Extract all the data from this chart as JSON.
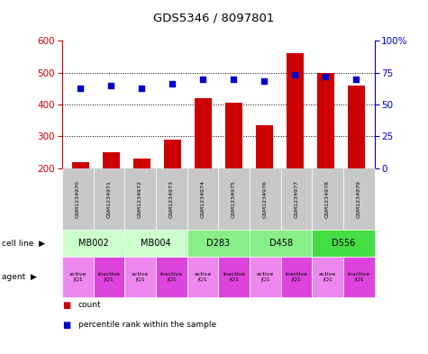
{
  "title": "GDS5346 / 8097801",
  "samples": [
    "GSM1234970",
    "GSM1234971",
    "GSM1234972",
    "GSM1234973",
    "GSM1234974",
    "GSM1234975",
    "GSM1234976",
    "GSM1234977",
    "GSM1234978",
    "GSM1234979"
  ],
  "counts": [
    220,
    250,
    230,
    290,
    420,
    405,
    335,
    560,
    500,
    460
  ],
  "percentiles": [
    63,
    65,
    63,
    66,
    70,
    70,
    68,
    73,
    72,
    70
  ],
  "cell_lines": [
    {
      "label": "MB002",
      "span": [
        0,
        2
      ],
      "color": "#ccffcc"
    },
    {
      "label": "MB004",
      "span": [
        2,
        4
      ],
      "color": "#ccffcc"
    },
    {
      "label": "D283",
      "span": [
        4,
        6
      ],
      "color": "#88ee88"
    },
    {
      "label": "D458",
      "span": [
        6,
        8
      ],
      "color": "#88ee88"
    },
    {
      "label": "D556",
      "span": [
        8,
        10
      ],
      "color": "#44dd44"
    }
  ],
  "agents_labels": [
    "active\nJQ1",
    "inactive\nJQ1",
    "active\nJQ1",
    "inactive\nJQ1",
    "active\nJQ1",
    "inactive\nJQ1",
    "active\nJQ1",
    "inactive\nJQ1",
    "active\nJQ1",
    "inactive\nJQ1"
  ],
  "agents_colors": [
    "#ee88ee",
    "#dd44dd",
    "#ee88ee",
    "#dd44dd",
    "#ee88ee",
    "#dd44dd",
    "#ee88ee",
    "#dd44dd",
    "#ee88ee",
    "#dd44dd"
  ],
  "ylim_left": [
    200,
    600
  ],
  "ylim_right": [
    0,
    100
  ],
  "yticks_left": [
    200,
    300,
    400,
    500,
    600
  ],
  "yticks_right": [
    0,
    25,
    50,
    75,
    100
  ],
  "bar_color": "#cc0000",
  "dot_color": "#0000cc",
  "bar_width": 0.55,
  "background_color": "#ffffff",
  "sample_bg": "#c8c8c8",
  "left_axis_color": "#cc0000",
  "right_axis_color": "#0000cc"
}
